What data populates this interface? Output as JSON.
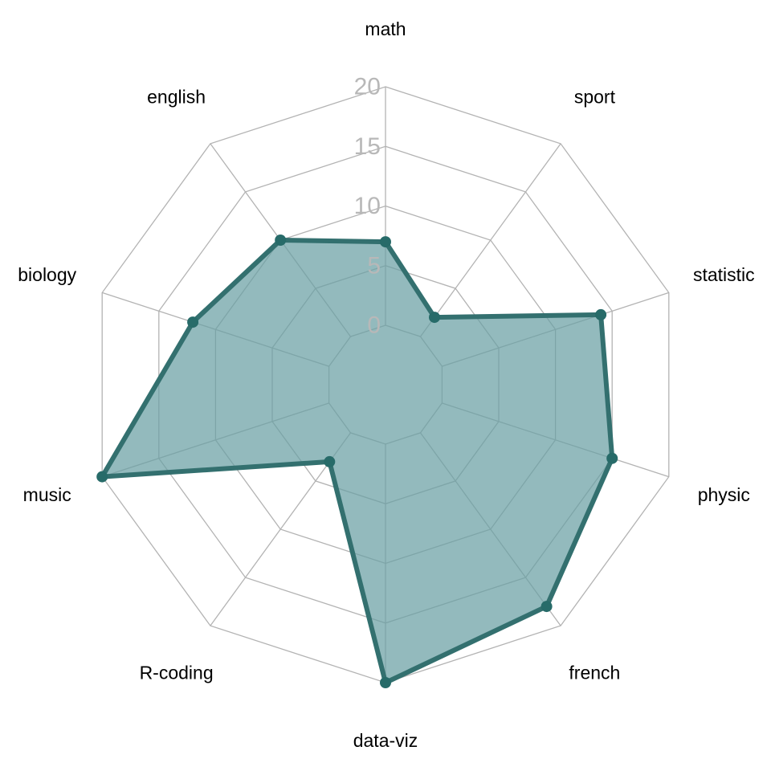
{
  "chart_data": {
    "type": "radar",
    "title": "",
    "categories": [
      "math",
      "sport",
      "statistic",
      "physic",
      "french",
      "data-viz",
      "R-coding",
      "music",
      "biology",
      "english"
    ],
    "series": [
      {
        "values": [
          7,
          2,
          14,
          15,
          18,
          20,
          3,
          20,
          12,
          10
        ]
      }
    ],
    "ticks": [
      0,
      5,
      10,
      15,
      20
    ],
    "tick_labels": [
      "0",
      "5",
      "10",
      "15",
      "20"
    ],
    "rlim": [
      0,
      20
    ],
    "grid": true,
    "legend": "none",
    "colors": {
      "fill": "#69a0a4",
      "line": "#33706f",
      "points": "#276b69",
      "grid": "#b3b3b3",
      "tick_text": "#b8b8b8"
    }
  }
}
